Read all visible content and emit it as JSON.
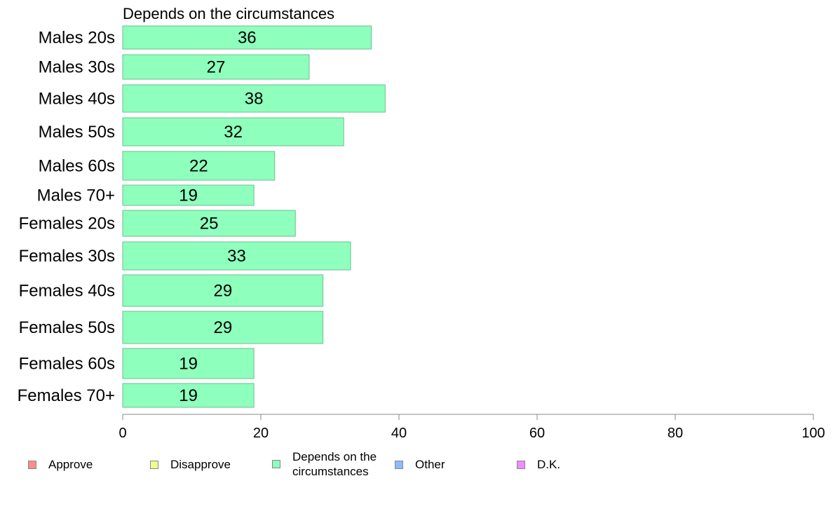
{
  "chart_data": {
    "type": "bar",
    "orientation": "horizontal",
    "title": "Depends on the circumstances",
    "categories": [
      "Males 20s",
      "Males 30s",
      "Males 40s",
      "Males 50s",
      "Males 60s",
      "Males 70+",
      "Females 20s",
      "Females 30s",
      "Females 40s",
      "Females 50s",
      "Females 60s",
      "Females 70+"
    ],
    "values": [
      36,
      27,
      38,
      32,
      22,
      19,
      25,
      33,
      29,
      29,
      19,
      19
    ],
    "xlim": [
      0,
      100
    ],
    "xticks": [
      "0",
      "20",
      "40",
      "60",
      "80",
      "100"
    ],
    "bar_color": "#8effbc",
    "bar_border_color": "#6fbf8f",
    "grid": false,
    "legend_position": "bottom",
    "legend": [
      {
        "label": "Approve",
        "color": "#ff8c8c"
      },
      {
        "label": "Disapprove",
        "color": "#f0ff8c"
      },
      {
        "label": "Depends on the circumstances",
        "color": "#8effbc"
      },
      {
        "label": "Other",
        "color": "#8cbcff"
      },
      {
        "label": "D.K.",
        "color": "#f08cff"
      }
    ]
  }
}
